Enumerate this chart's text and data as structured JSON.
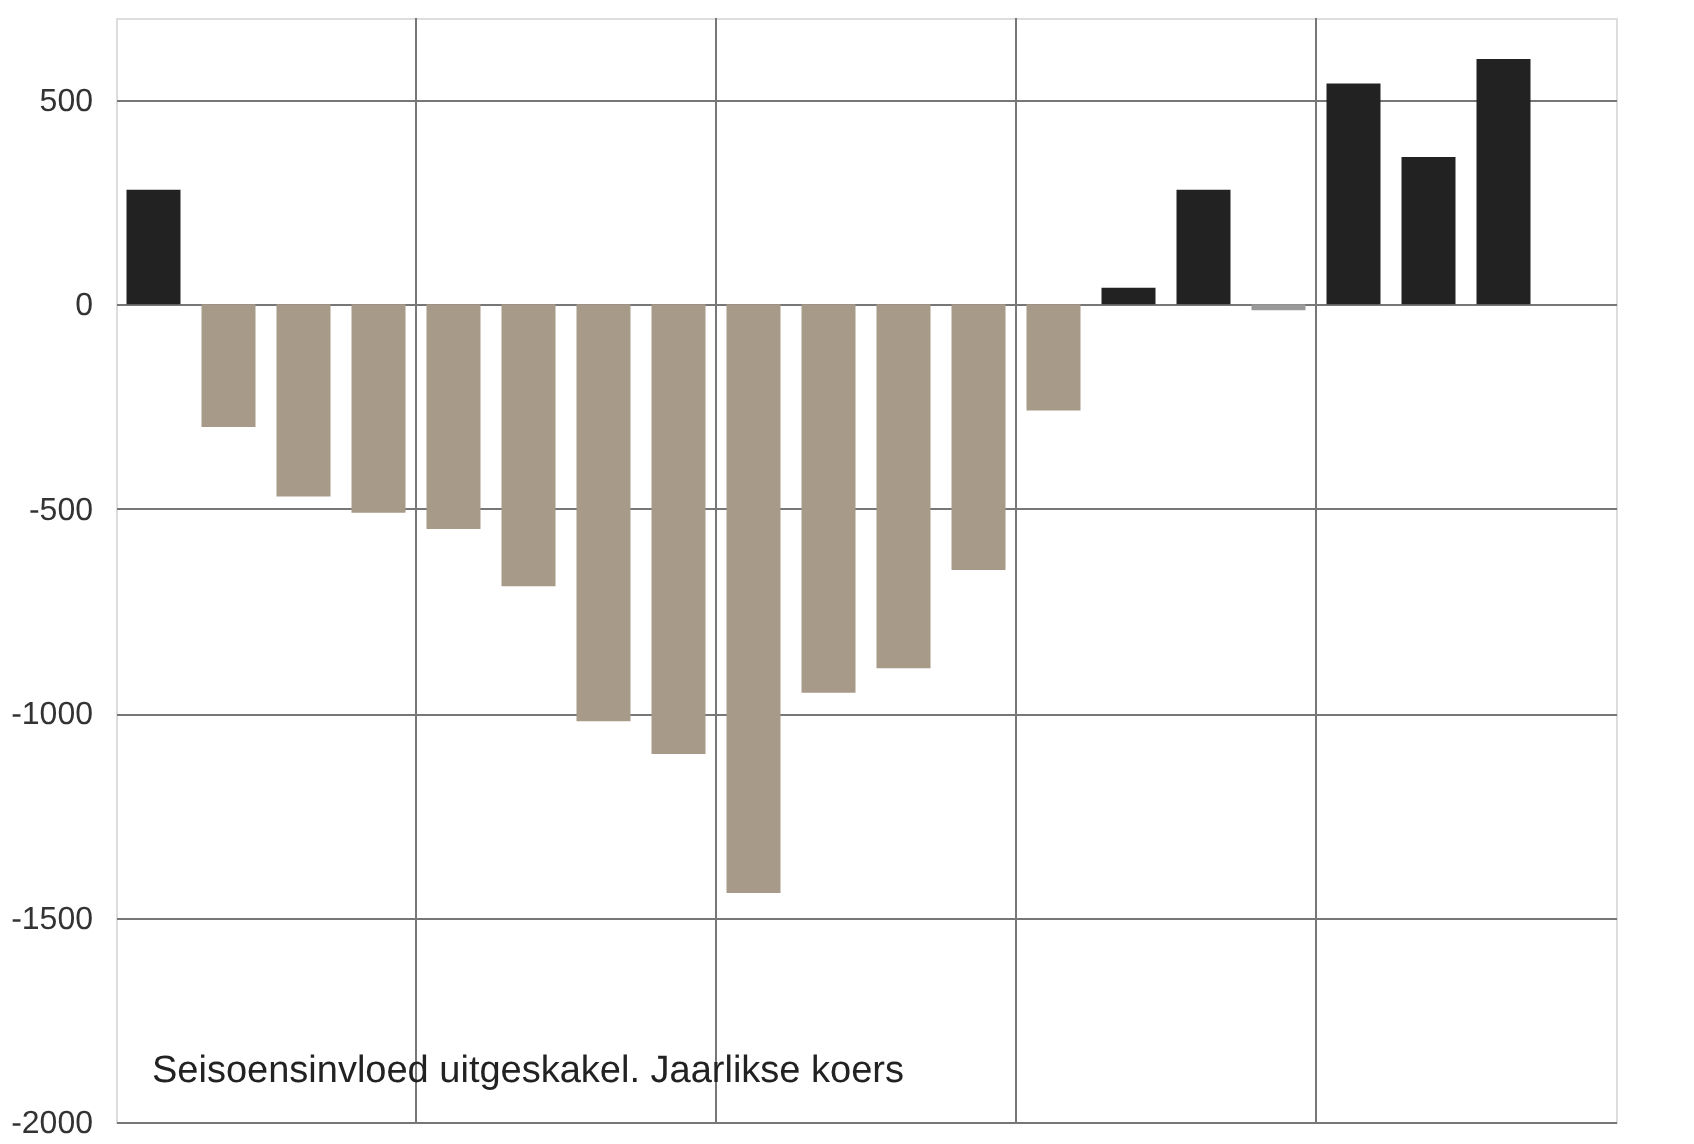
{
  "chart_data": {
    "type": "bar",
    "categories": [
      null,
      null,
      null,
      null,
      null,
      null,
      null,
      null,
      null,
      null,
      null,
      null,
      null,
      null,
      null,
      null,
      null,
      null,
      null,
      null
    ],
    "values": [
      280,
      -300,
      -470,
      -510,
      -550,
      -690,
      -1020,
      -1100,
      -1440,
      -950,
      -890,
      -650,
      -260,
      40,
      280,
      -15,
      540,
      360,
      600,
      null
    ],
    "colors": [
      "#222222",
      "#a89a88",
      "#a89a88",
      "#a89a88",
      "#a89a88",
      "#a89a88",
      "#a89a88",
      "#a89a88",
      "#a89a88",
      "#a89a88",
      "#a89a88",
      "#a89a88",
      "#a89a88",
      "#222222",
      "#222222",
      "#999999",
      "#222222",
      "#222222",
      "#222222",
      "#222222"
    ],
    "ylim": [
      -2000,
      700
    ],
    "yticks": [
      -2000,
      -1500,
      -1000,
      -500,
      0,
      500
    ],
    "grid": true,
    "tick_labels": "y",
    "annotations": [
      "Seisoensinvloed uitgeskakel. Jaarlikse koers"
    ]
  }
}
